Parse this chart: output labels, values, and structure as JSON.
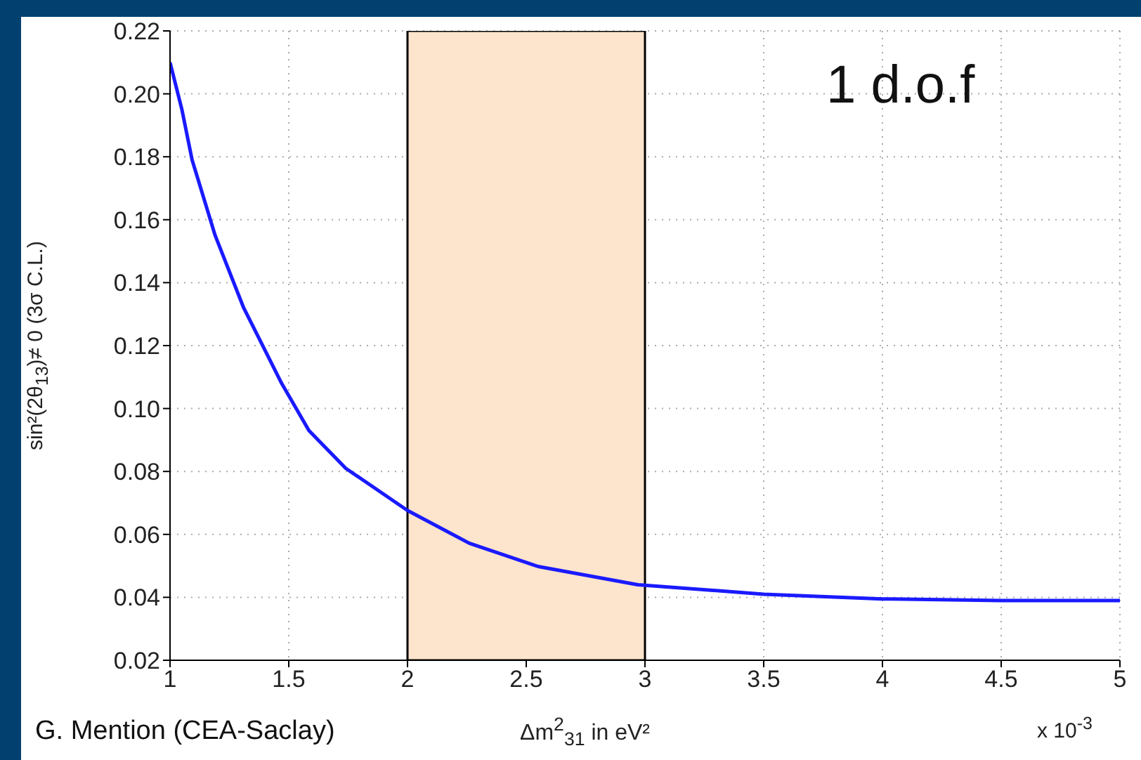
{
  "chart_data": {
    "type": "line",
    "xlabel": "Δm$^{2}$$_{31}$ in eV²",
    "ylabel": "sin²(2θ$_{13}$)≠ 0 (3σ C.L.)",
    "annotations": [
      "1 d.o.f",
      "G. Mention (CEA-Saclay)",
      "x 10$^{-3}$"
    ],
    "series": [
      {
        "color": "#1a1aff",
        "x": [
          1,
          1.05,
          1.093,
          1.19,
          1.31,
          1.47,
          1.585,
          1.74,
          2.0,
          2.26,
          2.55,
          2.97,
          3.5,
          4.0,
          4.5,
          5.0
        ],
        "values": [
          0.21,
          0.195,
          0.179,
          0.155,
          0.132,
          0.108,
          0.093,
          0.081,
          0.0676,
          0.0572,
          0.0498,
          0.044,
          0.041,
          0.0395,
          0.039,
          0.039
        ]
      }
    ],
    "bands": [
      {
        "axis": "x",
        "from": 2,
        "to": 3,
        "color": "#fde4cc"
      }
    ],
    "xlim": [
      1,
      5
    ],
    "xticks": [
      1,
      1.5,
      2,
      2.5,
      3,
      3.5,
      4,
      4.5,
      5
    ],
    "ylim": [
      0.02,
      0.22
    ],
    "yticks": [
      {
        "value": 0.02,
        "label": "0.02"
      },
      {
        "value": 0.04,
        "label": "0.04"
      },
      {
        "value": 0.06,
        "label": "0.06"
      },
      {
        "value": 0.08,
        "label": "0.08"
      },
      {
        "value": 0.1,
        "label": "0.10"
      },
      {
        "value": 0.12,
        "label": "0.12"
      },
      {
        "value": 0.14,
        "label": "0.14"
      },
      {
        "value": 0.16,
        "label": "0.16"
      },
      {
        "value": 0.18,
        "label": "0.18"
      },
      {
        "value": 0.2,
        "label": "0.20"
      },
      {
        "value": 0.22,
        "label": "0.22"
      }
    ],
    "grid": true,
    "marker": "none",
    "line_style": "solid"
  }
}
